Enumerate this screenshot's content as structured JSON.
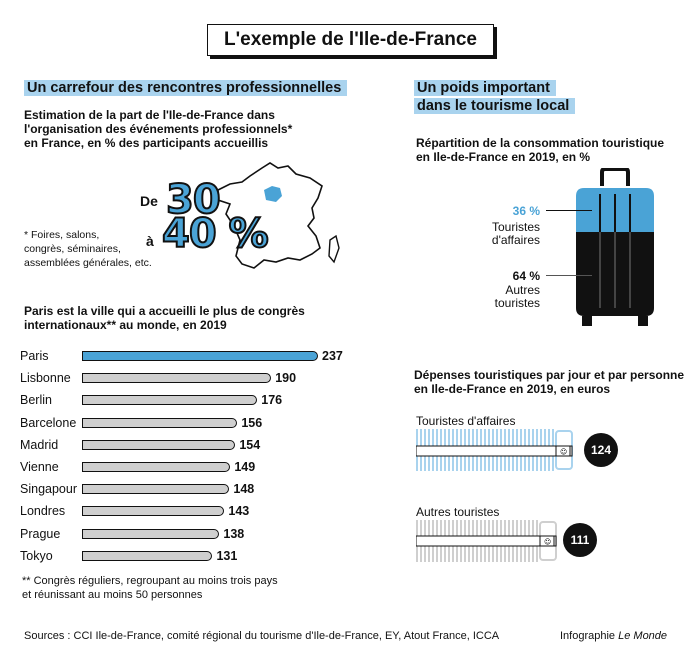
{
  "title": "L'exemple de l'Ile-de-France",
  "left": {
    "heading": "Un carrefour des rencontres professionnelles",
    "estimation_lines": [
      "Estimation de la part de l'Ile-de-France dans",
      "l'organisation des événements professionnels*",
      "en France, en % des participants accueillis"
    ],
    "de": "De",
    "a": "à",
    "range_low": "30",
    "range_high": "40 %",
    "footnote_lines": [
      "* Foires, salons,",
      "congrès, séminaires,",
      "assemblées générales, etc."
    ],
    "congress_title_lines": [
      "Paris est la ville qui a accueilli le plus de congrès",
      "internationaux** au monde, en 2019"
    ],
    "congress_footnote_lines": [
      "** Congrès réguliers, regroupant au moins trois pays",
      "et réunissant au moins 50 personnes"
    ]
  },
  "right": {
    "heading_lines": [
      "Un poids important",
      "dans le tourisme local"
    ],
    "conso_title_lines": [
      "Répartition de la consommation touristique",
      "en Ile-de-France en 2019, en %"
    ],
    "business_pct": "36 %",
    "business_label_lines": [
      "Touristes",
      "d'affaires"
    ],
    "other_pct": "64 %",
    "other_label_lines": [
      "Autres",
      "touristes"
    ],
    "spend_title_lines": [
      "Dépenses touristiques par jour et par personne",
      "en Ile-de-France en 2019, en euros"
    ],
    "spend_business_label": "Touristes d'affaires",
    "spend_business_value": "124",
    "spend_other_label": "Autres touristes",
    "spend_other_value": "111"
  },
  "footer": {
    "sources": "Sources :  CCI Ile-de-France, comité régional du tourisme d'Ile-de-France, EY, Atout France, ICCA",
    "credit_prefix": "Infographie ",
    "credit_italic": "Le Monde"
  },
  "colors": {
    "blue": "#4aa3d6",
    "light_blue": "#a9d3ee",
    "grey": "#cfcfcf",
    "dark": "#111111"
  },
  "chart_data": [
    {
      "type": "bar",
      "title": "Paris est la ville qui a accueilli le plus de congrès internationaux** au monde, en 2019",
      "categories": [
        "Paris",
        "Lisbonne",
        "Berlin",
        "Barcelone",
        "Madrid",
        "Vienne",
        "Singapour",
        "Londres",
        "Prague",
        "Tokyo"
      ],
      "values": [
        237,
        190,
        176,
        156,
        154,
        149,
        148,
        143,
        138,
        131
      ],
      "xlabel": "",
      "ylabel": ""
    },
    {
      "type": "bar",
      "title": "Répartition de la consommation touristique en Ile-de-France en 2019, en %",
      "categories": [
        "Touristes d'affaires",
        "Autres touristes"
      ],
      "values": [
        36,
        64
      ]
    },
    {
      "type": "bar",
      "title": "Dépenses touristiques par jour et par personne en Ile-de-France en 2019, en euros",
      "categories": [
        "Touristes d'affaires",
        "Autres touristes"
      ],
      "values": [
        124,
        111
      ]
    }
  ]
}
